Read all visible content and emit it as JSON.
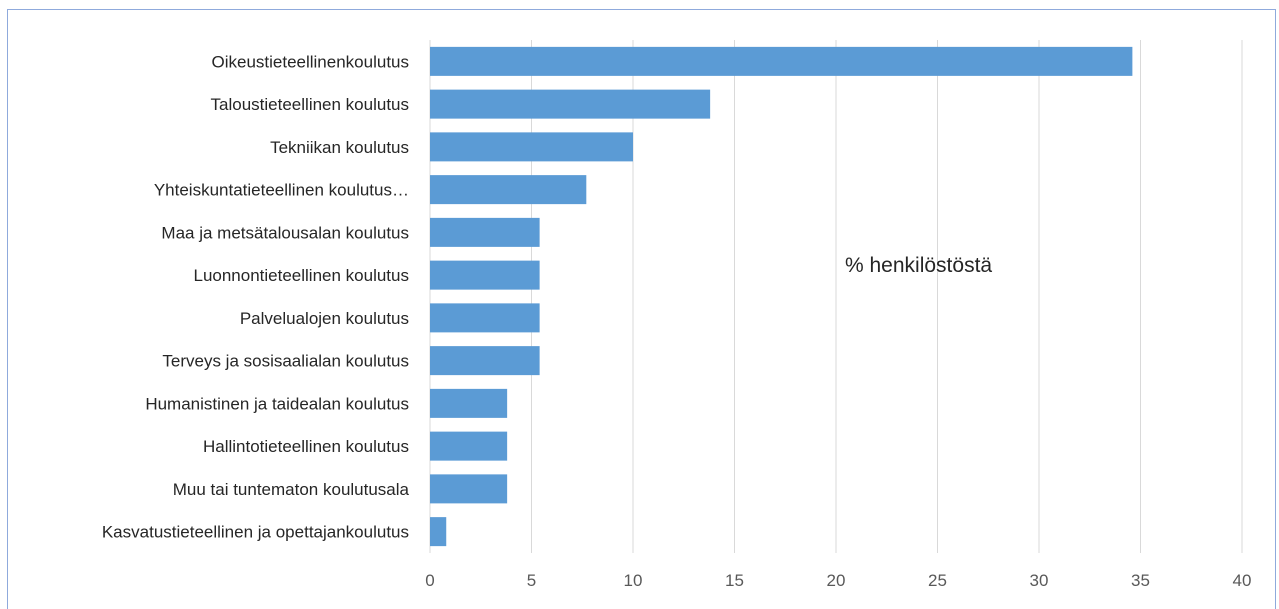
{
  "chart_data": {
    "type": "bar",
    "orientation": "horizontal",
    "categories": [
      "Oikeustieteellinenkoulutus",
      "Taloustieteellinen koulutus",
      "Tekniikan koulutus",
      "Yhteiskuntatieteellinen koulutus…",
      "Maa ja metsätalousalan koulutus",
      "Luonnontieteellinen koulutus",
      "Palvelualojen koulutus",
      "Terveys ja sosisaalialan koulutus",
      "Humanistinen ja taidealan koulutus",
      "Hallintotieteellinen koulutus",
      "Muu tai tuntematon koulutusala",
      "Kasvatustieteellinen ja opettajankoulutus"
    ],
    "values": [
      34.6,
      13.8,
      10.0,
      7.7,
      5.4,
      5.4,
      5.4,
      5.4,
      3.8,
      3.8,
      3.8,
      0.8
    ],
    "xlim": [
      0,
      40
    ],
    "xticks": [
      "0",
      "5",
      "10",
      "15",
      "20",
      "25",
      "30",
      "35",
      "40"
    ],
    "annotation": "% henkilöstöstä",
    "grid": true,
    "bar_color": "#5B9BD5",
    "grid_color": "#D9D9D9"
  }
}
